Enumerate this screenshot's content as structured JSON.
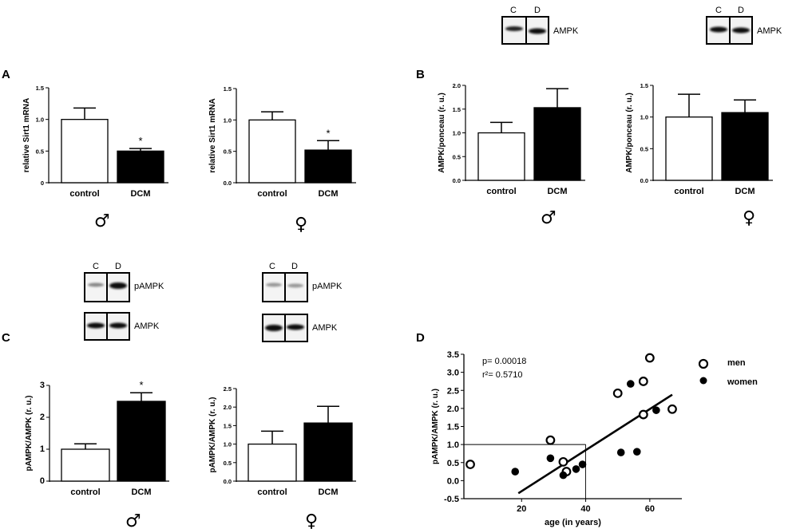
{
  "panel_labels": [
    "A",
    "B",
    "C",
    "D"
  ],
  "sex_symbols": {
    "male": "♂",
    "female": "♀"
  },
  "blots": {
    "lane_c": "C",
    "lane_d": "D",
    "ampk": "AMPK",
    "pampk": "pAMPK"
  },
  "chart_data": [
    {
      "type": "bar",
      "panel": "A",
      "sex": "male",
      "categories": [
        "control",
        "DCM"
      ],
      "values": [
        1.0,
        0.5
      ],
      "errors": [
        0.18,
        0.04
      ],
      "fills": [
        "#ffffff",
        "#000000"
      ],
      "significance": [
        "",
        "*"
      ],
      "ylabel": "relative Sirt1 mRNA",
      "ylim": [
        0,
        1.5
      ],
      "yticks": [
        0.0,
        0.5,
        1.0,
        1.5
      ],
      "ytick_labels": [
        "0",
        "0.5",
        "1.0",
        "1.5"
      ]
    },
    {
      "type": "bar",
      "panel": "A",
      "sex": "female",
      "categories": [
        "control",
        "DCM"
      ],
      "values": [
        1.0,
        0.52
      ],
      "errors": [
        0.13,
        0.15
      ],
      "fills": [
        "#ffffff",
        "#000000"
      ],
      "significance": [
        "",
        "*"
      ],
      "ylabel": "relative Sirt1 mRNA",
      "ylim": [
        0,
        1.5
      ],
      "yticks": [
        0.0,
        0.5,
        1.0,
        1.5
      ],
      "ytick_labels": [
        "0.0",
        "0.5",
        "1.0",
        "1.5"
      ]
    },
    {
      "type": "bar",
      "panel": "B",
      "sex": "male",
      "categories": [
        "control",
        "DCM"
      ],
      "values": [
        1.0,
        1.53
      ],
      "errors": [
        0.22,
        0.4
      ],
      "fills": [
        "#ffffff",
        "#000000"
      ],
      "significance": [
        "",
        ""
      ],
      "ylabel": "AMPK/ponceau (r. u.)",
      "ylim": [
        0,
        2.0
      ],
      "yticks": [
        0.0,
        0.5,
        1.0,
        1.5,
        2.0
      ],
      "ytick_labels": [
        "0.0",
        "0.5",
        "1.0",
        "1.5",
        "2.0"
      ]
    },
    {
      "type": "bar",
      "panel": "B",
      "sex": "female",
      "categories": [
        "control",
        "DCM"
      ],
      "values": [
        1.0,
        1.07
      ],
      "errors": [
        0.36,
        0.2
      ],
      "fills": [
        "#ffffff",
        "#000000"
      ],
      "significance": [
        "",
        ""
      ],
      "ylabel": "AMPK/ponceau (r. u.)",
      "ylim": [
        0,
        1.5
      ],
      "yticks": [
        0.0,
        0.5,
        1.0,
        1.5
      ],
      "ytick_labels": [
        "0.0",
        "0.5",
        "1.0",
        "1.5"
      ]
    },
    {
      "type": "bar",
      "panel": "C",
      "sex": "male",
      "categories": [
        "control",
        "DCM"
      ],
      "values": [
        1.0,
        2.5
      ],
      "errors": [
        0.17,
        0.27
      ],
      "fills": [
        "#ffffff",
        "#000000"
      ],
      "significance": [
        "",
        "*"
      ],
      "ylabel": "pAMPK/AMPK (r. u.)",
      "ylim": [
        0,
        3
      ],
      "yticks": [
        0,
        1,
        2,
        3
      ],
      "ytick_labels": [
        "0",
        "1",
        "2",
        "3"
      ]
    },
    {
      "type": "bar",
      "panel": "C",
      "sex": "female",
      "categories": [
        "control",
        "DCM"
      ],
      "values": [
        1.0,
        1.57
      ],
      "errors": [
        0.35,
        0.45
      ],
      "fills": [
        "#ffffff",
        "#000000"
      ],
      "significance": [
        "",
        ""
      ],
      "ylabel": "pAMPK/AMPK (r. u.)",
      "ylim": [
        0,
        2.5
      ],
      "yticks": [
        0.0,
        0.5,
        1.0,
        1.5,
        2.0,
        2.5
      ],
      "ytick_labels": [
        "0.0",
        "0.5",
        "1.0",
        "1.5",
        "2.0",
        "2.5"
      ]
    },
    {
      "type": "scatter",
      "panel": "D",
      "xlabel": "age (in years)",
      "ylabel": "pAMPK/AMPK (r. u.)",
      "xlim": [
        2,
        70
      ],
      "ylim": [
        -0.5,
        3.5
      ],
      "xticks": [
        20,
        40,
        60
      ],
      "xtick_labels": [
        "20",
        "40",
        "60"
      ],
      "yticks": [
        -0.5,
        0.0,
        0.5,
        1.0,
        1.5,
        2.0,
        2.5,
        3.0,
        3.5
      ],
      "ytick_labels": [
        "-0.5",
        "0.0",
        "0.5",
        "1.0",
        "1.5",
        "2.0",
        "2.5",
        "3.0",
        "3.5"
      ],
      "series": [
        {
          "name": "men",
          "marker": "open-circle",
          "x": [
            4,
            29,
            33,
            34,
            50,
            58,
            58,
            60,
            67
          ],
          "y": [
            0.45,
            1.12,
            0.52,
            0.25,
            2.42,
            2.75,
            1.83,
            3.4,
            1.98
          ]
        },
        {
          "name": "women",
          "marker": "filled-circle",
          "x": [
            18,
            29,
            33,
            37,
            39,
            51,
            54,
            56,
            62
          ],
          "y": [
            0.25,
            0.62,
            0.15,
            0.32,
            0.45,
            0.78,
            2.68,
            0.8,
            1.95
          ]
        }
      ],
      "regression_line": {
        "x": [
          19,
          67
        ],
        "y": [
          -0.35,
          2.38
        ]
      },
      "reference_lines": {
        "y": 1.0,
        "x": 40
      },
      "annotations": [
        "p= 0.00018",
        "r²= 0.5710"
      ]
    }
  ]
}
